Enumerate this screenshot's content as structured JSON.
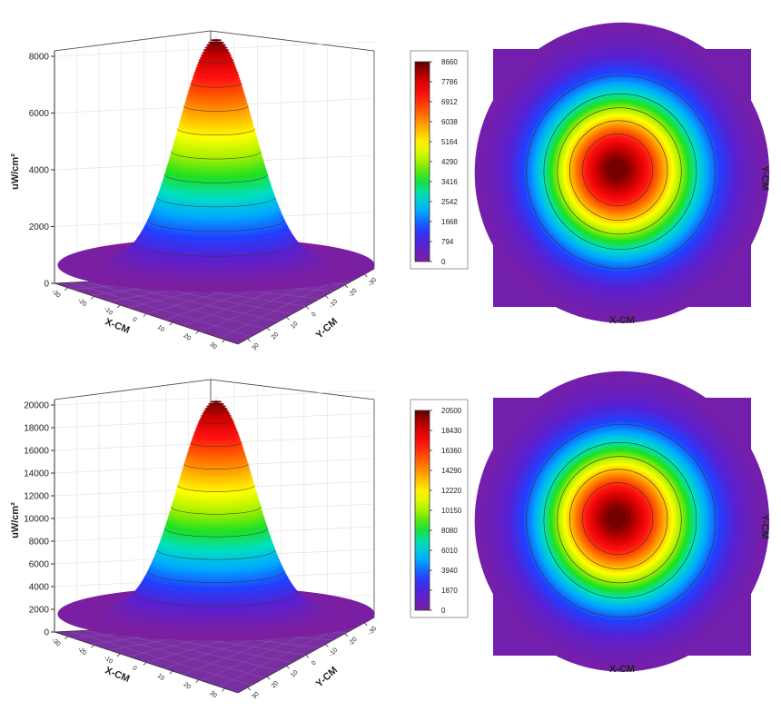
{
  "chart_data": [
    {
      "type": "surface3d-heatmap",
      "z_label": "uW/cm²",
      "x_label": "X-CM",
      "y_label": "Y-CM",
      "z_ticks": [
        0,
        2000,
        4000,
        6000,
        8000
      ],
      "z_max": 8660,
      "x_ticks": [
        -30,
        -20,
        -10,
        0,
        10,
        20,
        30
      ],
      "y_ticks": [
        -30,
        -20,
        -10,
        0,
        10,
        20,
        30
      ],
      "colorbar_ticks": [
        8660,
        7786,
        6912,
        6038,
        5164,
        4290,
        3416,
        2542,
        1668,
        794,
        0
      ],
      "peak": {
        "x": 0,
        "y": 0,
        "value": 8660
      },
      "heatmap_x_label": "X-CM",
      "heatmap_y_label": "Y-CM"
    },
    {
      "type": "surface3d-heatmap",
      "z_label": "uW/cm²",
      "x_label": "X-CM",
      "y_label": "Y-CM",
      "z_ticks": [
        0,
        2000,
        4000,
        6000,
        8000,
        10000,
        12000,
        14000,
        16000,
        18000,
        20000
      ],
      "z_max": 20500,
      "x_ticks": [
        -30,
        -20,
        -10,
        0,
        10,
        20,
        30
      ],
      "y_ticks": [
        -30,
        -20,
        -10,
        0,
        10,
        20,
        30
      ],
      "colorbar_ticks": [
        20500,
        18430,
        16360,
        14290,
        12220,
        10150,
        8080,
        6010,
        3940,
        1870,
        0
      ],
      "peak": {
        "x": 0,
        "y": 0,
        "value": 20500
      },
      "heatmap_x_label": "X-CM",
      "heatmap_y_label": "Y-CM"
    }
  ],
  "colormap": [
    "#7a1fa2",
    "#5a1fd0",
    "#2040ff",
    "#00a8ff",
    "#00e0c0",
    "#20e020",
    "#a8f000",
    "#ffff00",
    "#ffb000",
    "#ff6000",
    "#ff1010",
    "#d00000",
    "#5a0000"
  ]
}
